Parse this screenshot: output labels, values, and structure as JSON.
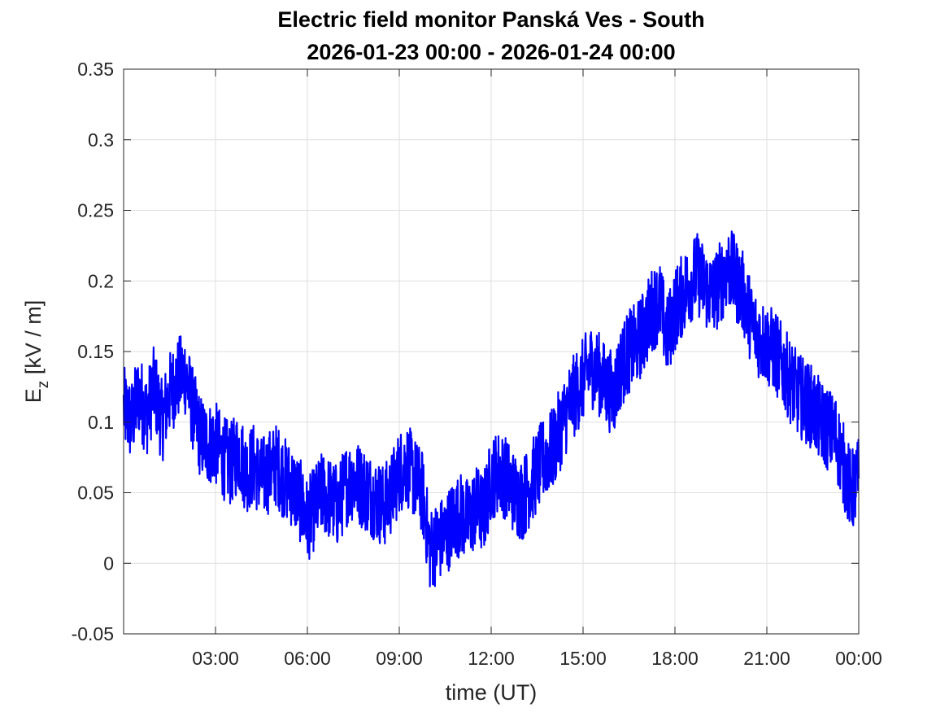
{
  "chart_data": {
    "type": "line",
    "title": "Electric field monitor Panská Ves - South",
    "subtitle": "2026-01-23 00:00 - 2026-01-24 00:00",
    "xlabel": "time (UT)",
    "ylabel_main": "E",
    "ylabel_sub": "z",
    "ylabel_unit": " [kV / m]",
    "xlim": [
      0,
      24
    ],
    "ylim": [
      -0.05,
      0.35
    ],
    "grid": true,
    "xticks": [
      {
        "value": 3,
        "label": "03:00"
      },
      {
        "value": 6,
        "label": "06:00"
      },
      {
        "value": 9,
        "label": "09:00"
      },
      {
        "value": 12,
        "label": "12:00"
      },
      {
        "value": 15,
        "label": "15:00"
      },
      {
        "value": 18,
        "label": "18:00"
      },
      {
        "value": 21,
        "label": "21:00"
      },
      {
        "value": 24,
        "label": "00:00"
      }
    ],
    "yticks": [
      {
        "value": -0.05,
        "label": "-0.05"
      },
      {
        "value": 0,
        "label": "0"
      },
      {
        "value": 0.05,
        "label": "0.05"
      },
      {
        "value": 0.1,
        "label": "0.1"
      },
      {
        "value": 0.15,
        "label": "0.15"
      },
      {
        "value": 0.2,
        "label": "0.2"
      },
      {
        "value": 0.25,
        "label": "0.25"
      },
      {
        "value": 0.3,
        "label": "0.3"
      },
      {
        "value": 0.35,
        "label": "0.35"
      }
    ],
    "series": [
      {
        "color": "#0000ff",
        "x": [
          0,
          0.25,
          0.5,
          0.75,
          1,
          1.25,
          1.5,
          1.75,
          2,
          2.25,
          2.5,
          2.75,
          3,
          3.25,
          3.5,
          3.75,
          4,
          4.25,
          4.5,
          4.75,
          5,
          5.25,
          5.5,
          5.75,
          6,
          6.25,
          6.5,
          6.75,
          7,
          7.25,
          7.5,
          7.75,
          8,
          8.25,
          8.5,
          8.75,
          9,
          9.25,
          9.5,
          9.75,
          10,
          10.25,
          10.5,
          10.75,
          11,
          11.25,
          11.5,
          11.75,
          12,
          12.25,
          12.5,
          12.75,
          13,
          13.25,
          13.5,
          13.75,
          14,
          14.25,
          14.5,
          14.75,
          15,
          15.25,
          15.5,
          15.75,
          16,
          16.25,
          16.5,
          16.75,
          17,
          17.25,
          17.5,
          17.75,
          18,
          18.25,
          18.5,
          18.75,
          19,
          19.25,
          19.5,
          19.75,
          20,
          20.25,
          20.5,
          20.75,
          21,
          21.25,
          21.5,
          21.75,
          22,
          22.25,
          22.5,
          22.75,
          23,
          23.25,
          23.5,
          23.75,
          24
        ],
        "y": [
          0.11,
          0.1,
          0.12,
          0.105,
          0.125,
          0.1,
          0.12,
          0.13,
          0.135,
          0.11,
          0.09,
          0.085,
          0.085,
          0.075,
          0.07,
          0.08,
          0.065,
          0.07,
          0.06,
          0.065,
          0.07,
          0.06,
          0.055,
          0.045,
          0.03,
          0.04,
          0.05,
          0.045,
          0.04,
          0.055,
          0.06,
          0.055,
          0.05,
          0.045,
          0.04,
          0.05,
          0.065,
          0.07,
          0.06,
          0.05,
          0.01,
          0.015,
          0.02,
          0.03,
          0.035,
          0.03,
          0.04,
          0.035,
          0.06,
          0.065,
          0.06,
          0.05,
          0.045,
          0.055,
          0.065,
          0.075,
          0.08,
          0.095,
          0.11,
          0.12,
          0.13,
          0.14,
          0.135,
          0.125,
          0.12,
          0.14,
          0.15,
          0.155,
          0.165,
          0.18,
          0.185,
          0.16,
          0.18,
          0.19,
          0.2,
          0.205,
          0.195,
          0.19,
          0.2,
          0.21,
          0.2,
          0.19,
          0.17,
          0.16,
          0.155,
          0.15,
          0.14,
          0.13,
          0.12,
          0.115,
          0.11,
          0.1,
          0.095,
          0.09,
          0.07,
          0.05,
          0.06
        ]
      }
    ]
  }
}
